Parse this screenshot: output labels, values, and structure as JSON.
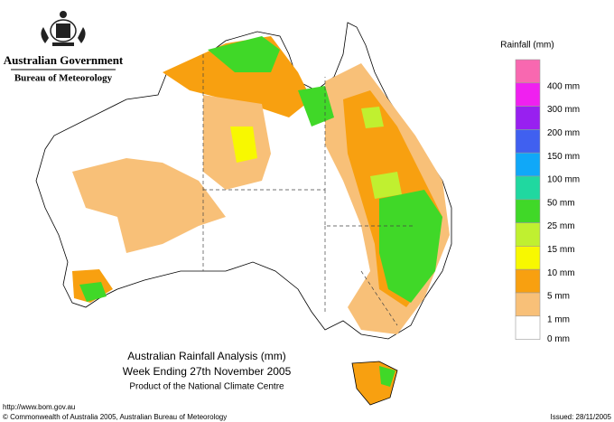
{
  "header": {
    "government": "Australian Government",
    "agency": "Bureau of Meteorology"
  },
  "legend": {
    "title": "Rainfall (mm)",
    "items": [
      {
        "label": "400 mm",
        "color": "#f868b0"
      },
      {
        "label": "300 mm",
        "color": "#f020f0"
      },
      {
        "label": "200 mm",
        "color": "#9820f0"
      },
      {
        "label": "150 mm",
        "color": "#4060f0"
      },
      {
        "label": "100 mm",
        "color": "#10a8f8"
      },
      {
        "label": "50 mm",
        "color": "#20d8a0"
      },
      {
        "label": "25 mm",
        "color": "#40d828"
      },
      {
        "label": "15 mm",
        "color": "#c0f030"
      },
      {
        "label": "10 mm",
        "color": "#f8f800"
      },
      {
        "label": "5 mm",
        "color": "#f8a010"
      },
      {
        "label": "1 mm",
        "color": "#f8c078"
      },
      {
        "label": "0 mm",
        "color": "#ffffff"
      }
    ]
  },
  "title": {
    "line1": "Australian Rainfall Analysis (mm)",
    "line2": "Week Ending 27th November 2005",
    "line3": "Product of the National Climate Centre"
  },
  "footer": {
    "url": "http://www.bom.gov.au",
    "copyright": "© Commonwealth of Australia 2005, Australian Bureau of Meteorology",
    "issued": "Issued: 28/11/2005"
  }
}
